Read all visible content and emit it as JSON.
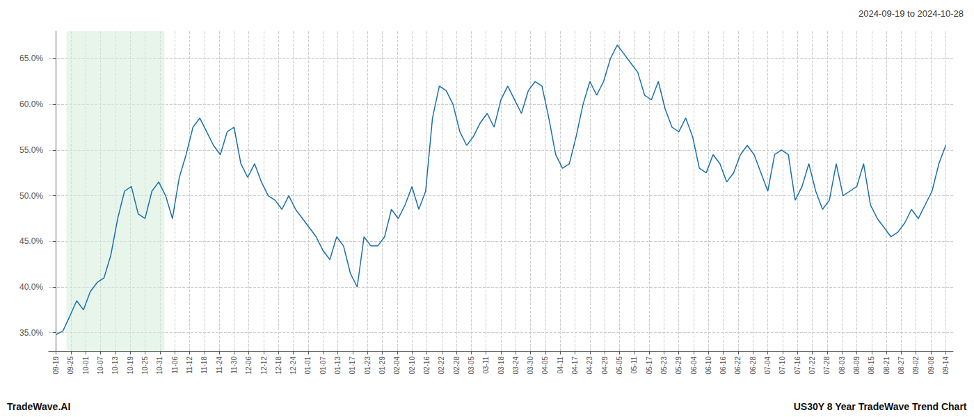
{
  "chart_data": {
    "type": "line",
    "title": "2024-09-19 to 2024-10-28",
    "annotations": [
      "TradeWave.AI",
      "US30Y 8 Year TradeWave Trend Chart"
    ],
    "color": "#1a6faf",
    "grid": true,
    "shaded_range": {
      "x": [
        0.7,
        7.3
      ],
      "color": "#d4edda"
    },
    "xlim": [
      -0.5,
      60.5
    ],
    "xticks": [
      {
        "value": 0,
        "label": "09-19"
      },
      {
        "value": 1,
        "label": "09-25"
      },
      {
        "value": 2,
        "label": "10-01"
      },
      {
        "value": 3,
        "label": "10-07"
      },
      {
        "value": 4,
        "label": "10-13"
      },
      {
        "value": 5,
        "label": "10-19"
      },
      {
        "value": 6,
        "label": "10-25"
      },
      {
        "value": 7,
        "label": "10-31"
      },
      {
        "value": 8,
        "label": "11-06"
      },
      {
        "value": 9,
        "label": "11-12"
      },
      {
        "value": 10,
        "label": "11-18"
      },
      {
        "value": 11,
        "label": "11-24"
      },
      {
        "value": 12,
        "label": "11-30"
      },
      {
        "value": 13,
        "label": "12-06"
      },
      {
        "value": 14,
        "label": "12-12"
      },
      {
        "value": 15,
        "label": "12-18"
      },
      {
        "value": 16,
        "label": "12-24"
      },
      {
        "value": 17,
        "label": "01-01"
      },
      {
        "value": 18,
        "label": "01-07"
      },
      {
        "value": 19,
        "label": "01-13"
      },
      {
        "value": 20,
        "label": "01-17"
      },
      {
        "value": 21,
        "label": "01-23"
      },
      {
        "value": 22,
        "label": "01-29"
      },
      {
        "value": 23,
        "label": "02-04"
      },
      {
        "value": 24,
        "label": "02-10"
      },
      {
        "value": 25,
        "label": "02-16"
      },
      {
        "value": 26,
        "label": "02-22"
      },
      {
        "value": 27,
        "label": "02-28"
      },
      {
        "value": 28,
        "label": "03-05"
      },
      {
        "value": 29,
        "label": "03-11"
      },
      {
        "value": 30,
        "label": "03-18"
      },
      {
        "value": 31,
        "label": "03-24"
      },
      {
        "value": 32,
        "label": "03-30"
      },
      {
        "value": 33,
        "label": "04-05"
      },
      {
        "value": 34,
        "label": "04-11"
      },
      {
        "value": 35,
        "label": "04-17"
      },
      {
        "value": 36,
        "label": "04-23"
      },
      {
        "value": 37,
        "label": "04-29"
      },
      {
        "value": 38,
        "label": "05-05"
      },
      {
        "value": 39,
        "label": "05-11"
      },
      {
        "value": 40,
        "label": "05-17"
      },
      {
        "value": 41,
        "label": "05-23"
      },
      {
        "value": 42,
        "label": "05-29"
      },
      {
        "value": 43,
        "label": "06-04"
      },
      {
        "value": 44,
        "label": "06-10"
      },
      {
        "value": 45,
        "label": "06-16"
      },
      {
        "value": 46,
        "label": "06-22"
      },
      {
        "value": 47,
        "label": "06-28"
      },
      {
        "value": 48,
        "label": "07-04"
      },
      {
        "value": 49,
        "label": "07-10"
      },
      {
        "value": 50,
        "label": "07-16"
      },
      {
        "value": 51,
        "label": "07-22"
      },
      {
        "value": 52,
        "label": "07-28"
      },
      {
        "value": 53,
        "label": "08-03"
      },
      {
        "value": 54,
        "label": "08-09"
      },
      {
        "value": 55,
        "label": "08-15"
      },
      {
        "value": 56,
        "label": "08-21"
      },
      {
        "value": 57,
        "label": "08-27"
      },
      {
        "value": 58,
        "label": "09-02"
      },
      {
        "value": 59,
        "label": "09-08"
      },
      {
        "value": 60,
        "label": "09-14"
      }
    ],
    "ylim": [
      33.0,
      68.0
    ],
    "yticks": [
      {
        "value": 35.0,
        "label": "35.0%"
      },
      {
        "value": 40.0,
        "label": "40.0%"
      },
      {
        "value": 45.0,
        "label": "45.0%"
      },
      {
        "value": 50.0,
        "label": "50.0%"
      },
      {
        "value": 55.0,
        "label": "55.0%"
      },
      {
        "value": 60.0,
        "label": "60.0%"
      },
      {
        "value": 65.0,
        "label": "65.0%"
      }
    ],
    "x": [
      0,
      0.461538,
      0.923077,
      1.384615,
      1.846154,
      2.307692,
      2.769231,
      3.230769,
      3.692308,
      4.153846,
      4.615385,
      5.076923,
      5.538462,
      6,
      6.461538,
      6.923077,
      7.384615,
      7.846154,
      8.307692,
      8.769231,
      9.230769,
      9.692308,
      10.153846,
      10.615385,
      11.076923,
      11.538462,
      12,
      12.461538,
      12.923077,
      13.384615,
      13.846154,
      14.307692,
      14.769231,
      15.230769,
      15.692308,
      16.153846,
      16.615385,
      17.076923,
      17.538462,
      18,
      18.461538,
      18.923077,
      19.384615,
      19.846154,
      20.307692,
      20.769231,
      21.230769,
      21.692308,
      22.153846,
      22.615385,
      23.076923,
      23.538462,
      24,
      24.461538,
      24.923077,
      25.384615,
      25.846154,
      26.307692,
      26.769231,
      27.230769,
      27.692308,
      28.153846,
      28.615385,
      29.076923,
      29.538462,
      30,
      30.461538,
      30.923077,
      31.384615,
      31.846154,
      32.307692,
      32.769231,
      33.230769,
      33.692308,
      34.153846,
      34.615385,
      35.076923,
      35.538462,
      36,
      36.461538,
      36.923077,
      37.384615,
      37.846154,
      38.307692,
      38.769231,
      39.230769,
      39.692308,
      40.153846,
      40.615385,
      41.076923,
      41.538462,
      42,
      42.461538,
      42.923077,
      43.384615,
      43.846154,
      44.307692,
      44.769231,
      45.230769,
      45.692308,
      46.153846,
      46.615385,
      47.076923,
      47.538462,
      48,
      48.461538,
      48.923077,
      49.384615,
      49.846154,
      50.307692,
      50.769231,
      51.230769,
      51.692308,
      52.153846,
      52.615385,
      53.076923,
      53.538462,
      54,
      54.461538,
      54.923077,
      55.384615,
      55.846154,
      56.307692,
      56.769231,
      57.230769,
      57.692308,
      58.153846,
      58.615385,
      59.076923,
      59.538462,
      60
    ],
    "values": [
      34.8,
      35.2,
      36.8,
      38.5,
      37.5,
      39.5,
      40.5,
      41.0,
      43.5,
      47.5,
      50.5,
      51.0,
      48.0,
      47.5,
      50.5,
      51.5,
      50.0,
      47.5,
      52.0,
      54.5,
      57.5,
      58.5,
      57.0,
      55.5,
      54.5,
      57.0,
      57.5,
      53.5,
      52.0,
      53.5,
      51.5,
      50.0,
      49.5,
      48.5,
      50.0,
      48.5,
      47.5,
      46.5,
      45.5,
      44.0,
      43.0,
      45.5,
      44.5,
      41.5,
      40.0,
      45.5,
      44.5,
      44.5,
      45.5,
      48.5,
      47.5,
      49.0,
      51.0,
      48.5,
      50.5,
      58.5,
      62.0,
      61.5,
      60.0,
      57.0,
      55.5,
      56.5,
      58.0,
      59.0,
      57.5,
      60.5,
      62.0,
      60.5,
      59.0,
      61.5,
      62.5,
      62.0,
      58.5,
      54.5,
      53.0,
      53.5,
      56.5,
      60.0,
      62.5,
      61.0,
      62.5,
      65.0,
      66.5,
      65.5,
      64.5,
      63.5,
      61.0,
      60.5,
      62.5,
      59.5,
      57.5,
      57.0,
      58.5,
      56.5,
      53.0,
      52.5,
      54.5,
      53.5,
      51.5,
      52.5,
      54.5,
      55.5,
      54.5,
      52.5,
      50.5,
      54.5,
      55.0,
      54.5,
      49.5,
      51.0,
      53.5,
      50.5,
      48.5,
      49.5,
      53.5,
      50.0,
      50.5,
      51.0,
      53.5,
      49.0,
      47.5,
      46.5,
      45.5,
      46.0,
      47.0,
      48.5,
      47.5,
      49.0,
      50.5,
      53.5,
      55.5
    ]
  }
}
